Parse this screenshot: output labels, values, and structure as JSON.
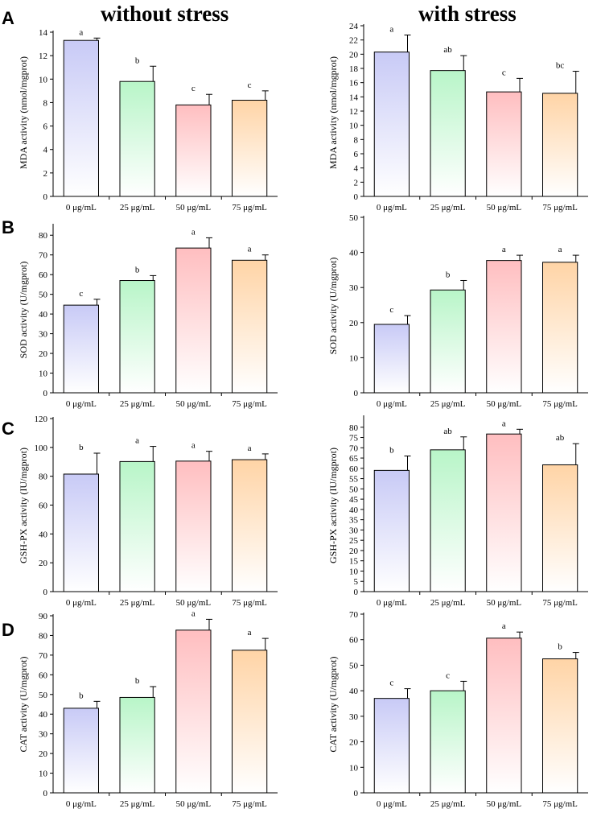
{
  "figure": {
    "column_titles": [
      "without stress",
      "with stress"
    ],
    "panel_letters": [
      "A",
      "B",
      "C",
      "D"
    ],
    "colors": {
      "bar_tops": [
        "#c8caf6",
        "#b8f5c8",
        "#ffbec0",
        "#ffd4a6"
      ],
      "bar_bottom": "#ffffff",
      "axis": "#000000",
      "error_bar": "#000000"
    }
  },
  "chart_data": [
    {
      "id": "A-without-stress",
      "type": "bar",
      "title": "",
      "xlabel": "",
      "ylabel": "MDA activity (nmol/mgprot)",
      "categories": [
        "0 μg/mL",
        "25 μg/mL",
        "50 μg/mL",
        "75 μg/mL"
      ],
      "values": [
        13.3,
        9.8,
        7.8,
        8.2
      ],
      "errors": [
        0.2,
        1.3,
        0.9,
        0.8
      ],
      "letters": [
        "a",
        "b",
        "c",
        "c"
      ],
      "ylim": [
        0,
        14
      ],
      "yticks": [
        0,
        2,
        4,
        6,
        8,
        10,
        12,
        14
      ],
      "grid": false
    },
    {
      "id": "A-with-stress",
      "type": "bar",
      "title": "",
      "xlabel": "",
      "ylabel": "MDA activity (nmol/mgprot)",
      "categories": [
        "0 μg/mL",
        "25 μg/mL",
        "50 μg/mL",
        "75 μg/mL"
      ],
      "values": [
        20.3,
        17.7,
        14.7,
        14.5
      ],
      "errors": [
        2.4,
        2.1,
        1.9,
        3.1
      ],
      "letters": [
        "a",
        "ab",
        "c",
        "bc"
      ],
      "ylim": [
        0,
        24
      ],
      "yticks": [
        0,
        2,
        4,
        6,
        8,
        10,
        12,
        14,
        16,
        18,
        20,
        22,
        24
      ],
      "grid": false
    },
    {
      "id": "B-without-stress",
      "type": "bar",
      "title": "",
      "xlabel": "",
      "ylabel": "SOD activity (U/mgprot)",
      "categories": [
        "0 μg/mL",
        "25 μg/mL",
        "50 μg/mL",
        "75 μg/mL"
      ],
      "values": [
        44.5,
        57.0,
        73.5,
        67.3
      ],
      "errors": [
        3.0,
        2.5,
        5.2,
        2.7
      ],
      "letters": [
        "c",
        "b",
        "a",
        "a"
      ],
      "ylim": [
        0,
        85
      ],
      "yticks": [
        0,
        10,
        20,
        30,
        40,
        50,
        60,
        70,
        80
      ],
      "grid": false
    },
    {
      "id": "B-with-stress",
      "type": "bar",
      "title": "",
      "xlabel": "",
      "ylabel": "SOD activity (U/mgprot)",
      "categories": [
        "0 μg/mL",
        "25 μg/mL",
        "50 μg/mL",
        "75 μg/mL"
      ],
      "values": [
        19.5,
        29.3,
        37.7,
        37.2
      ],
      "errors": [
        2.5,
        2.7,
        1.5,
        2.0
      ],
      "letters": [
        "c",
        "b",
        "a",
        "a"
      ],
      "ylim": [
        0,
        50
      ],
      "yticks": [
        0,
        10,
        20,
        30,
        40,
        50
      ],
      "grid": false
    },
    {
      "id": "C-without-stress",
      "type": "bar",
      "title": "",
      "xlabel": "",
      "ylabel": "GSH-PX activity (IU/mgprot)",
      "categories": [
        "0 μg/mL",
        "25 μg/mL",
        "50 μg/mL",
        "75 μg/mL"
      ],
      "values": [
        81.5,
        90.2,
        90.5,
        91.5
      ],
      "errors": [
        14.5,
        10.5,
        6.8,
        4.0
      ],
      "letters": [
        "b",
        "a",
        "a",
        "a"
      ],
      "ylim": [
        0,
        120
      ],
      "yticks": [
        0,
        20,
        40,
        60,
        80,
        100,
        120
      ],
      "grid": false
    },
    {
      "id": "C-with-stress",
      "type": "bar",
      "title": "",
      "xlabel": "",
      "ylabel": "GSH-PX activity (IU/mgprot)",
      "categories": [
        "0 μg/mL",
        "25 μg/mL",
        "50 μg/mL",
        "75 μg/mL"
      ],
      "values": [
        59.0,
        69.0,
        76.7,
        61.7
      ],
      "errors": [
        7.0,
        6.3,
        2.3,
        10.3
      ],
      "letters": [
        "b",
        "ab",
        "a",
        "ab"
      ],
      "ylim": [
        0,
        85
      ],
      "yticks": [
        0,
        5,
        10,
        15,
        20,
        25,
        30,
        35,
        40,
        45,
        50,
        55,
        60,
        65,
        70,
        75,
        80
      ],
      "grid": false
    },
    {
      "id": "D-without-stress",
      "type": "bar",
      "title": "",
      "xlabel": "",
      "ylabel": "CAT activity (U/mgprot)",
      "categories": [
        "0 μg/mL",
        "25 μg/mL",
        "50 μg/mL",
        "75 μg/mL"
      ],
      "values": [
        43.0,
        48.5,
        82.7,
        72.5
      ],
      "errors": [
        3.5,
        5.5,
        5.5,
        6.0
      ],
      "letters": [
        "b",
        "b",
        "a",
        "a"
      ],
      "ylim": [
        0,
        90
      ],
      "yticks": [
        0,
        10,
        20,
        30,
        40,
        50,
        60,
        70,
        80,
        90
      ],
      "grid": false
    },
    {
      "id": "D-with-stress",
      "type": "bar",
      "title": "",
      "xlabel": "",
      "ylabel": "CAT activity (U/mgprot)",
      "categories": [
        "0 μg/mL",
        "25 μg/mL",
        "50 μg/mL",
        "75 μg/mL"
      ],
      "values": [
        37.0,
        40.0,
        60.6,
        52.5
      ],
      "errors": [
        3.8,
        3.7,
        2.4,
        2.5
      ],
      "letters": [
        "c",
        "c",
        "a",
        "b"
      ],
      "ylim": [
        0,
        70
      ],
      "yticks": [
        0,
        10,
        20,
        30,
        40,
        50,
        60,
        70
      ],
      "grid": false
    }
  ]
}
